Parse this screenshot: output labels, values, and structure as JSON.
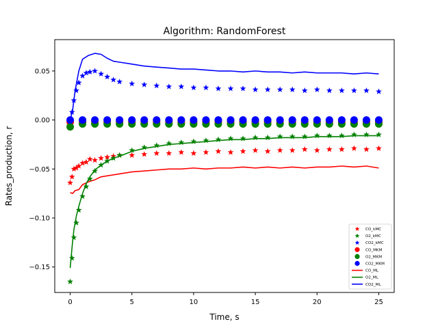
{
  "chart_data": {
    "type": "line",
    "title": "Algorithm: RandomForest",
    "xlabel": "Time, s",
    "ylabel": "Rates_production, r",
    "xlim": [
      -1.25,
      26.25
    ],
    "ylim": [
      -0.176,
      0.082
    ],
    "xticks": [
      0,
      5,
      10,
      15,
      20,
      25
    ],
    "xtick_labels": [
      "0",
      "5",
      "10",
      "15",
      "20",
      "25"
    ],
    "yticks": [
      -0.15,
      -0.1,
      -0.05,
      0.0,
      0.05
    ],
    "ytick_labels": [
      "−0.15",
      "−0.10",
      "−0.05",
      "0.00",
      "0.05"
    ],
    "grid": false,
    "legend_position": "bottom-right",
    "colors": {
      "CO": "#ff0000",
      "O2": "#008000",
      "CO2": "#0000ff"
    },
    "series": [
      {
        "name": "CO_kMC",
        "kind": "star-markers",
        "color": "#ff0000",
        "x": [
          0,
          0.15,
          0.3,
          0.5,
          0.7,
          1,
          1.3,
          1.6,
          2,
          2.5,
          3,
          3.5,
          4,
          5,
          6,
          7,
          8,
          9,
          10,
          11,
          12,
          13,
          14,
          15,
          16,
          17,
          18,
          19,
          20,
          21,
          22,
          23,
          24,
          25
        ],
        "y": [
          -0.064,
          -0.058,
          -0.05,
          -0.049,
          -0.047,
          -0.044,
          -0.043,
          -0.04,
          -0.041,
          -0.039,
          -0.038,
          -0.037,
          -0.036,
          -0.036,
          -0.035,
          -0.034,
          -0.034,
          -0.033,
          -0.034,
          -0.033,
          -0.032,
          -0.033,
          -0.032,
          -0.031,
          -0.032,
          -0.031,
          -0.031,
          -0.03,
          -0.031,
          -0.03,
          -0.03,
          -0.029,
          -0.03,
          -0.029
        ]
      },
      {
        "name": "O2_kMC",
        "kind": "star-markers",
        "color": "#008000",
        "x": [
          0,
          0.15,
          0.3,
          0.5,
          0.7,
          1,
          1.3,
          1.6,
          2,
          2.5,
          3,
          3.5,
          4,
          5,
          6,
          7,
          8,
          9,
          10,
          11,
          12,
          13,
          14,
          15,
          16,
          17,
          18,
          19,
          20,
          21,
          22,
          23,
          24,
          25
        ],
        "y": [
          -0.165,
          -0.141,
          -0.12,
          -0.105,
          -0.092,
          -0.078,
          -0.068,
          -0.06,
          -0.052,
          -0.046,
          -0.042,
          -0.039,
          -0.036,
          -0.031,
          -0.028,
          -0.026,
          -0.024,
          -0.023,
          -0.022,
          -0.021,
          -0.02,
          -0.019,
          -0.019,
          -0.018,
          -0.018,
          -0.017,
          -0.017,
          -0.017,
          -0.016,
          -0.016,
          -0.016,
          -0.015,
          -0.015,
          -0.015
        ]
      },
      {
        "name": "CO2_kMC",
        "kind": "star-markers",
        "color": "#0000ff",
        "x": [
          0,
          0.15,
          0.3,
          0.5,
          0.7,
          1,
          1.3,
          1.6,
          2,
          2.5,
          3,
          3.5,
          4,
          5,
          6,
          7,
          8,
          9,
          10,
          11,
          12,
          13,
          14,
          15,
          16,
          17,
          18,
          19,
          20,
          21,
          22,
          23,
          24,
          25
        ],
        "y": [
          0.0,
          0.008,
          0.02,
          0.03,
          0.038,
          0.045,
          0.048,
          0.049,
          0.05,
          0.047,
          0.044,
          0.041,
          0.039,
          0.037,
          0.036,
          0.035,
          0.034,
          0.034,
          0.033,
          0.033,
          0.032,
          0.032,
          0.032,
          0.031,
          0.031,
          0.031,
          0.031,
          0.03,
          0.031,
          0.03,
          0.03,
          0.03,
          0.03,
          0.029
        ]
      },
      {
        "name": "CO_MKM",
        "kind": "circle-markers",
        "color": "#ff0000",
        "x": [
          0,
          1,
          2,
          3,
          4,
          5,
          6,
          7,
          8,
          9,
          10,
          11,
          12,
          13,
          14,
          15,
          16,
          17,
          18,
          19,
          20,
          21,
          22,
          23,
          24,
          25
        ],
        "y": [
          -0.002,
          -0.002,
          -0.002,
          -0.002,
          -0.002,
          -0.002,
          -0.002,
          -0.002,
          -0.002,
          -0.002,
          -0.002,
          -0.002,
          -0.002,
          -0.002,
          -0.002,
          -0.002,
          -0.002,
          -0.002,
          -0.002,
          -0.002,
          -0.002,
          -0.002,
          -0.002,
          -0.002,
          -0.002,
          -0.002
        ]
      },
      {
        "name": "O2_MKM",
        "kind": "circle-markers",
        "color": "#008000",
        "x": [
          0,
          1,
          2,
          3,
          4,
          5,
          6,
          7,
          8,
          9,
          10,
          11,
          12,
          13,
          14,
          15,
          16,
          17,
          18,
          19,
          20,
          21,
          22,
          23,
          24,
          25
        ],
        "y": [
          -0.007,
          -0.004,
          -0.004,
          -0.004,
          -0.004,
          -0.004,
          -0.004,
          -0.004,
          -0.004,
          -0.004,
          -0.004,
          -0.004,
          -0.004,
          -0.004,
          -0.004,
          -0.004,
          -0.004,
          -0.004,
          -0.004,
          -0.004,
          -0.004,
          -0.004,
          -0.004,
          -0.004,
          -0.004,
          -0.004
        ]
      },
      {
        "name": "CO2_MKM",
        "kind": "circle-markers",
        "color": "#0000ff",
        "x": [
          0,
          1,
          2,
          3,
          4,
          5,
          6,
          7,
          8,
          9,
          10,
          11,
          12,
          13,
          14,
          15,
          16,
          17,
          18,
          19,
          20,
          21,
          22,
          23,
          24,
          25
        ],
        "y": [
          0.0,
          0.0,
          0.0,
          0.0,
          0.0,
          0.0,
          0.0,
          0.0,
          0.0,
          0.0,
          0.0,
          0.0,
          0.0,
          0.0,
          0.0,
          0.0,
          0.0,
          0.0,
          0.0,
          0.0,
          0.0,
          0.0,
          0.0,
          0.0,
          0.0,
          0.0
        ]
      },
      {
        "name": "CO_ML",
        "kind": "line",
        "color": "#ff0000",
        "x": [
          0,
          0.2,
          0.4,
          0.7,
          1,
          1.5,
          2,
          2.5,
          3,
          4,
          5,
          6,
          7,
          8,
          9,
          10,
          11,
          12,
          13,
          14,
          15,
          16,
          17,
          18,
          19,
          20,
          21,
          22,
          23,
          24,
          25
        ],
        "y": [
          -0.074,
          -0.075,
          -0.072,
          -0.071,
          -0.066,
          -0.063,
          -0.061,
          -0.058,
          -0.057,
          -0.055,
          -0.053,
          -0.052,
          -0.051,
          -0.05,
          -0.05,
          -0.049,
          -0.05,
          -0.049,
          -0.049,
          -0.048,
          -0.049,
          -0.048,
          -0.049,
          -0.048,
          -0.049,
          -0.048,
          -0.048,
          -0.047,
          -0.048,
          -0.047,
          -0.049
        ]
      },
      {
        "name": "O2_ML",
        "kind": "line",
        "color": "#008000",
        "x": [
          0,
          0.15,
          0.3,
          0.5,
          0.7,
          1,
          1.3,
          1.6,
          2,
          2.5,
          3,
          3.5,
          4,
          5,
          6,
          7,
          8,
          9,
          10,
          11,
          12,
          13,
          14,
          15,
          16,
          17,
          18,
          19,
          20,
          21,
          22,
          23,
          24,
          25
        ],
        "y": [
          -0.151,
          -0.13,
          -0.112,
          -0.098,
          -0.088,
          -0.075,
          -0.065,
          -0.058,
          -0.051,
          -0.046,
          -0.042,
          -0.039,
          -0.037,
          -0.032,
          -0.029,
          -0.027,
          -0.025,
          -0.024,
          -0.023,
          -0.022,
          -0.021,
          -0.02,
          -0.02,
          -0.019,
          -0.019,
          -0.018,
          -0.018,
          -0.018,
          -0.017,
          -0.017,
          -0.017,
          -0.016,
          -0.016,
          -0.016
        ]
      },
      {
        "name": "CO2_ML",
        "kind": "line",
        "color": "#0000ff",
        "x": [
          0,
          0.2,
          0.4,
          0.7,
          1,
          1.5,
          2,
          2.5,
          3,
          3.5,
          4,
          5,
          6,
          7,
          8,
          9,
          10,
          11,
          12,
          13,
          14,
          15,
          16,
          17,
          18,
          19,
          20,
          21,
          22,
          23,
          24,
          25
        ],
        "y": [
          0.0,
          0.01,
          0.03,
          0.05,
          0.062,
          0.066,
          0.068,
          0.067,
          0.063,
          0.06,
          0.059,
          0.057,
          0.055,
          0.054,
          0.053,
          0.052,
          0.052,
          0.051,
          0.05,
          0.05,
          0.049,
          0.05,
          0.049,
          0.049,
          0.048,
          0.049,
          0.048,
          0.048,
          0.048,
          0.047,
          0.048,
          0.047
        ]
      }
    ]
  }
}
